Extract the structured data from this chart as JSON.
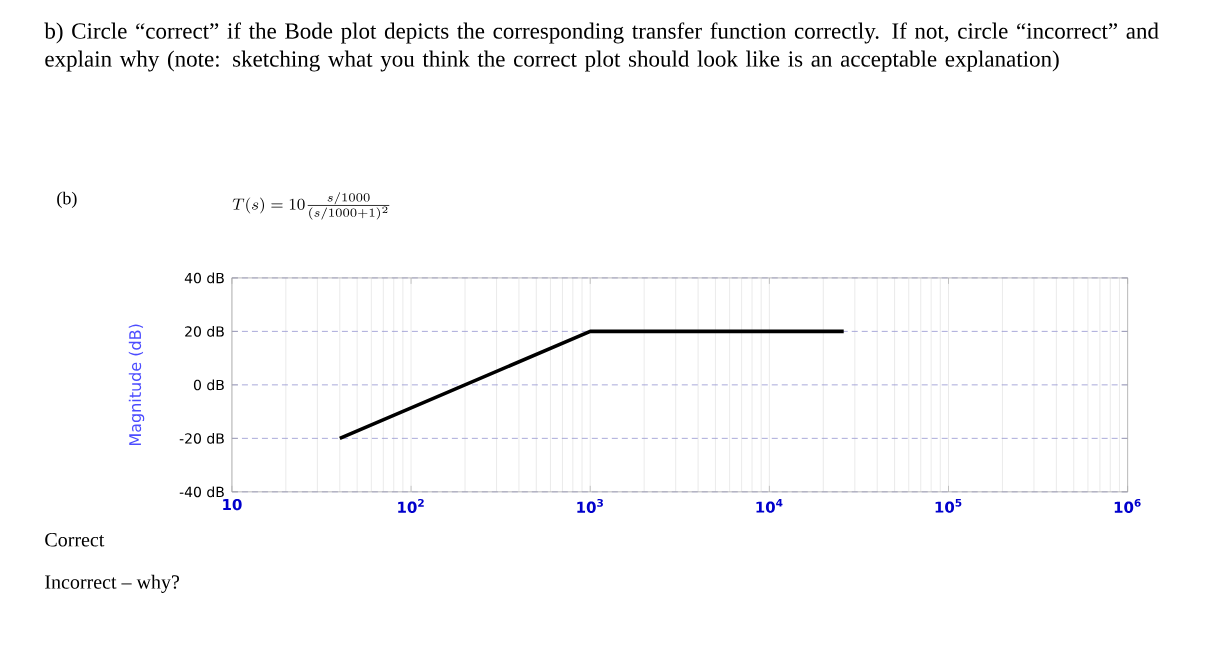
{
  "chart_data": {
    "type": "line",
    "title": "b) Circle “correct” if the Bode plot depicts the corresponding transfer function correctly. If not, circle “incorrect” and explain why (note: sketching what you think the correct plot should look like is an acceptable explanation)",
    "ylabel": "Magnitude (dB)",
    "annotations": [
      "(b)",
      "T(s)=10\\frac{s/1000}{(s/1000+1)^2}",
      "Correct",
      "Incorrect – why?"
    ],
    "log": "x",
    "grid": true,
    "marker": "none",
    "line_style": "solid",
    "xlim": [
      10,
      1000000
    ],
    "ylim": [
      -40,
      40
    ],
    "xticks": [
      10,
      {
        "value": 100,
        "label": "10$^{2}$"
      },
      {
        "value": 1000,
        "label": "10$^{3}$"
      },
      {
        "value": 10000,
        "label": "10$^{4}$"
      },
      {
        "value": 100000,
        "label": "10$^{5}$"
      },
      {
        "value": 1000000,
        "label": "10$^{6}$"
      }
    ],
    "yticks": [
      {
        "value": -40,
        "label": "-40 dB"
      },
      {
        "value": -20,
        "label": "-20 dB"
      },
      {
        "value": 0,
        "label": "0 dB"
      },
      {
        "value": 20,
        "label": "20 dB"
      },
      {
        "value": 40,
        "label": "40 dB"
      }
    ],
    "series": [
      {
        "color": "#000000",
        "x": [
          40,
          1000,
          26000
        ],
        "values": [
          -20,
          20,
          20
        ]
      }
    ]
  }
}
